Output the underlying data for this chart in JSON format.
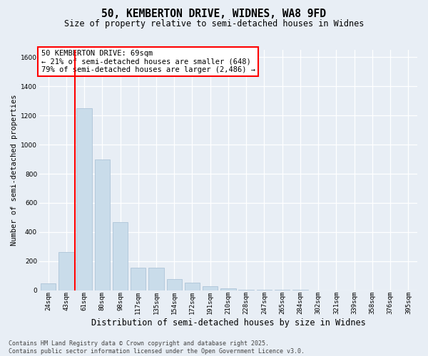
{
  "title_line1": "50, KEMBERTON DRIVE, WIDNES, WA8 9FD",
  "title_line2": "Size of property relative to semi-detached houses in Widnes",
  "xlabel": "Distribution of semi-detached houses by size in Widnes",
  "ylabel": "Number of semi-detached properties",
  "categories": [
    "24sqm",
    "43sqm",
    "61sqm",
    "80sqm",
    "98sqm",
    "117sqm",
    "135sqm",
    "154sqm",
    "172sqm",
    "191sqm",
    "210sqm",
    "228sqm",
    "247sqm",
    "265sqm",
    "284sqm",
    "302sqm",
    "321sqm",
    "339sqm",
    "358sqm",
    "376sqm",
    "395sqm"
  ],
  "values": [
    50,
    265,
    1250,
    900,
    470,
    155,
    155,
    75,
    55,
    30,
    12,
    5,
    4,
    2,
    2,
    1,
    1,
    1,
    0,
    0,
    0
  ],
  "bar_color": "#c9dcea",
  "bar_edge_color": "#adc4d8",
  "vline_color": "red",
  "vline_position": 1.5,
  "ylim_max": 1650,
  "yticks": [
    0,
    200,
    400,
    600,
    800,
    1000,
    1200,
    1400,
    1600
  ],
  "annotation_title": "50 KEMBERTON DRIVE: 69sqm",
  "annotation_line1": "← 21% of semi-detached houses are smaller (648)",
  "annotation_line2": "79% of semi-detached houses are larger (2,486) →",
  "footer_line1": "Contains HM Land Registry data © Crown copyright and database right 2025.",
  "footer_line2": "Contains public sector information licensed under the Open Government Licence v3.0.",
  "bg_color": "#e8eef5",
  "grid_color": "#ffffff",
  "title1_fontsize": 10.5,
  "title2_fontsize": 8.5,
  "ylabel_fontsize": 7.5,
  "xlabel_fontsize": 8.5,
  "tick_fontsize": 6.5,
  "ann_fontsize": 7.5,
  "footer_fontsize": 6.0
}
